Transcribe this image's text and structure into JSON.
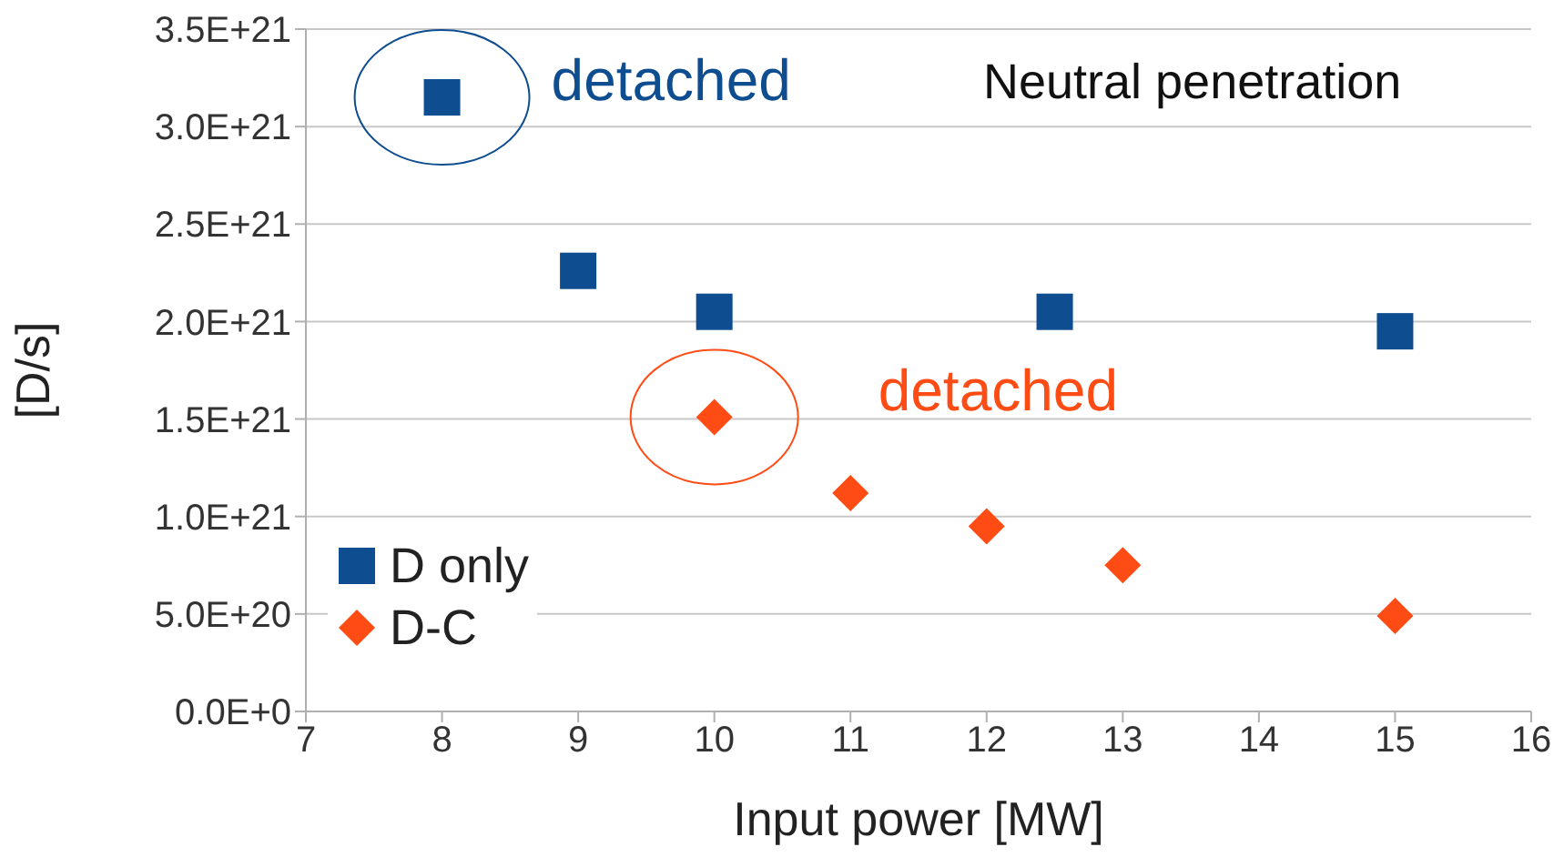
{
  "chart_data": {
    "type": "scatter",
    "xlabel": "Input power [MW]",
    "ylabel": "[D/s]",
    "xlim": [
      7,
      16
    ],
    "xticks": [
      7,
      8,
      9,
      10,
      11,
      12,
      13,
      14,
      15,
      16
    ],
    "ylim": [
      0,
      3.5e+21
    ],
    "yticks": [
      {
        "value": 0,
        "label": "0.0E+0"
      },
      {
        "value": 5e+20,
        "label": "5.0E+20"
      },
      {
        "value": 1e+21,
        "label": "1.0E+21"
      },
      {
        "value": 1.5e+21,
        "label": "1.5E+21"
      },
      {
        "value": 2e+21,
        "label": "2.0E+21"
      },
      {
        "value": 2.5e+21,
        "label": "2.5E+21"
      },
      {
        "value": 3e+21,
        "label": "3.0E+21"
      },
      {
        "value": 3.5e+21,
        "label": "3.5E+21"
      }
    ],
    "grid": "y",
    "legend": "bottom left",
    "series": [
      {
        "name": "D only",
        "color": "#0e4d8f",
        "marker": "square",
        "x": [
          8,
          9,
          10,
          12.5,
          15
        ],
        "values": [
          3.15e+21,
          2.26e+21,
          2.05e+21,
          2.05e+21,
          1.95e+21
        ]
      },
      {
        "name": "D-C",
        "color": "#ff4b14",
        "marker": "diamond",
        "x": [
          10,
          11,
          12,
          13,
          15
        ],
        "values": [
          1.51e+21,
          1.12e+21,
          9.5e+20,
          7.5e+20,
          4.9e+20
        ]
      }
    ],
    "annotations": [
      {
        "text": "detached",
        "x": 8,
        "y": 3.15e+21
      },
      {
        "text": "detached",
        "x": 10,
        "y": 1.51e+21
      },
      "Neutral penetration"
    ]
  }
}
